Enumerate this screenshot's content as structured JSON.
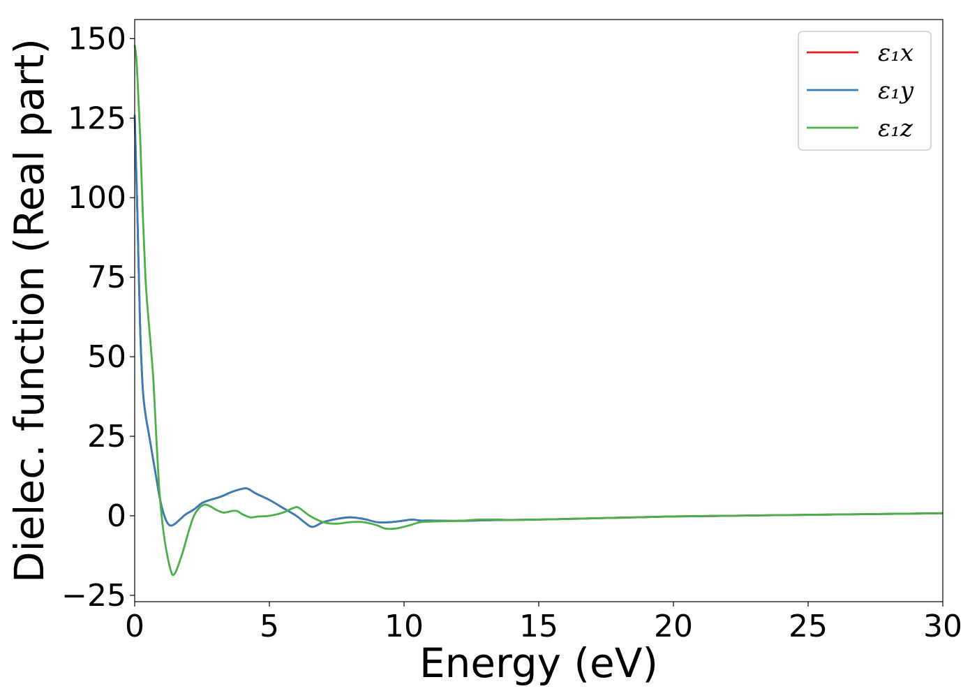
{
  "chart_data": {
    "type": "line",
    "xlabel": "Energy (eV)",
    "ylabel": "Dielec. function (Real part)",
    "xlim": [
      0,
      30
    ],
    "ylim": [
      -27,
      156
    ],
    "xticks": [
      0,
      5,
      10,
      15,
      20,
      25,
      30
    ],
    "yticks": [
      -25,
      0,
      25,
      50,
      75,
      100,
      125,
      150
    ],
    "ytick_labels": [
      "−25",
      "0",
      "25",
      "50",
      "75",
      "100",
      "125",
      "150"
    ],
    "grid": false,
    "legend_position": "top-right",
    "series": [
      {
        "name": "ε₁x",
        "color": "#e41a1c",
        "x": [
          0,
          0.1,
          0.2,
          0.3,
          0.4,
          0.5,
          0.6,
          0.7,
          0.8,
          0.9,
          1.0,
          1.1,
          1.2,
          1.3,
          1.4,
          1.5,
          1.7,
          1.9,
          2.2,
          2.5,
          2.8,
          3.2,
          3.6,
          4.0,
          4.2,
          4.5,
          5.0,
          5.5,
          6.0,
          6.3,
          6.6,
          7.0,
          7.5,
          8.0,
          8.5,
          9.0,
          9.5,
          10.0,
          10.3,
          10.6,
          11,
          12,
          13,
          14,
          15,
          16,
          17,
          18,
          19,
          20,
          22,
          24,
          26,
          28,
          30
        ],
        "values": [
          126,
          95,
          60,
          40,
          32,
          27,
          22,
          17,
          12,
          7,
          3,
          0,
          -2,
          -3,
          -3,
          -2.5,
          -1,
          0.5,
          2,
          4,
          5,
          6,
          7.5,
          8.5,
          8.5,
          7,
          5,
          2.5,
          0,
          -2,
          -3.5,
          -2,
          -1,
          -0.5,
          -1,
          -2,
          -2,
          -1.5,
          -1.2,
          -1.5,
          -1.5,
          -1.6,
          -1.4,
          -1.3,
          -1.2,
          -1.0,
          -0.8,
          -0.6,
          -0.4,
          -0.2,
          0,
          0.2,
          0.4,
          0.6,
          0.8
        ]
      },
      {
        "name": "ε₁y",
        "color": "#377eb8",
        "x": [
          0,
          0.1,
          0.2,
          0.3,
          0.4,
          0.5,
          0.6,
          0.7,
          0.8,
          0.9,
          1.0,
          1.1,
          1.2,
          1.3,
          1.4,
          1.5,
          1.7,
          1.9,
          2.2,
          2.5,
          2.8,
          3.2,
          3.6,
          4.0,
          4.2,
          4.5,
          5.0,
          5.5,
          6.0,
          6.3,
          6.6,
          7.0,
          7.5,
          8.0,
          8.5,
          9.0,
          9.5,
          10.0,
          10.3,
          10.6,
          11,
          12,
          13,
          14,
          15,
          16,
          17,
          18,
          19,
          20,
          22,
          24,
          26,
          28,
          30
        ],
        "values": [
          126,
          95,
          60,
          40,
          32,
          27,
          22,
          17,
          12,
          7,
          3,
          0,
          -2,
          -3,
          -3,
          -2.5,
          -1,
          0.5,
          2,
          4,
          5,
          6,
          7.5,
          8.5,
          8.5,
          7,
          5,
          2.5,
          0,
          -2,
          -3.5,
          -2,
          -1,
          -0.5,
          -1,
          -2,
          -2,
          -1.5,
          -1.2,
          -1.5,
          -1.5,
          -1.6,
          -1.4,
          -1.3,
          -1.2,
          -1.0,
          -0.8,
          -0.6,
          -0.4,
          -0.2,
          0,
          0.2,
          0.4,
          0.6,
          0.8
        ]
      },
      {
        "name": "ε₁z",
        "color": "#4daf4a",
        "x": [
          0,
          0.05,
          0.1,
          0.2,
          0.3,
          0.4,
          0.5,
          0.6,
          0.7,
          0.8,
          0.9,
          1.0,
          1.1,
          1.2,
          1.3,
          1.4,
          1.5,
          1.6,
          1.8,
          2.0,
          2.2,
          2.4,
          2.6,
          2.8,
          3.0,
          3.3,
          3.6,
          3.8,
          4.0,
          4.3,
          4.6,
          5.0,
          5.5,
          5.9,
          6.1,
          6.5,
          7.0,
          7.5,
          8.0,
          8.5,
          9.0,
          9.3,
          9.7,
          10.2,
          10.6,
          11,
          12,
          12.8,
          13.5,
          14,
          15,
          16,
          17,
          18,
          19,
          20,
          22,
          24,
          26,
          28,
          30
        ],
        "values": [
          148,
          145,
          138,
          120,
          95,
          75,
          63,
          53,
          42,
          25,
          10,
          0,
          -7,
          -12,
          -16,
          -18.5,
          -18,
          -16,
          -11,
          -5,
          0,
          2.5,
          3.5,
          3,
          2,
          1,
          1.5,
          1.5,
          0.5,
          -0.5,
          -0.2,
          0,
          1,
          2.5,
          2.5,
          0,
          -2,
          -2.5,
          -2,
          -2,
          -3,
          -4,
          -4,
          -3,
          -2,
          -1.8,
          -1.6,
          -1.2,
          -1.2,
          -1.3,
          -1.2,
          -1.0,
          -0.8,
          -0.6,
          -0.4,
          -0.2,
          0,
          0.2,
          0.4,
          0.6,
          0.8
        ]
      }
    ]
  }
}
